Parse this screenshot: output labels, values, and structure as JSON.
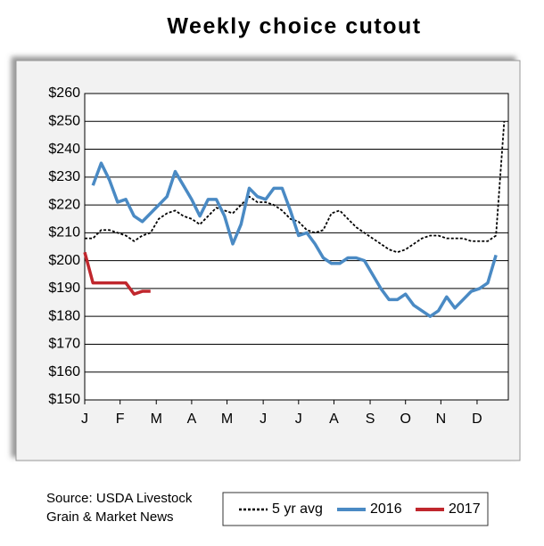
{
  "chart_data": {
    "type": "line",
    "title": "Weekly choice cutout",
    "source": [
      "Source: USDA Livestock",
      "Grain & Market News"
    ],
    "x": [
      0,
      1,
      2,
      3,
      4,
      5,
      6,
      7,
      8,
      9,
      10,
      11,
      12,
      13,
      14,
      15,
      16,
      17,
      18,
      19,
      20,
      21,
      22,
      23,
      24,
      25,
      26,
      27,
      28,
      29,
      30,
      31,
      32,
      33,
      34,
      35,
      36,
      37,
      38,
      39,
      40,
      41,
      42,
      43,
      44,
      45,
      46,
      47,
      48,
      49,
      50,
      51
    ],
    "xlim": [
      0,
      51.5
    ],
    "xticks": [
      {
        "value": 0,
        "label": "J"
      },
      {
        "value": 4.3,
        "label": "F"
      },
      {
        "value": 8.7,
        "label": "M"
      },
      {
        "value": 13,
        "label": "A"
      },
      {
        "value": 17.3,
        "label": "M"
      },
      {
        "value": 21.7,
        "label": "J"
      },
      {
        "value": 26,
        "label": "J"
      },
      {
        "value": 30.3,
        "label": "A"
      },
      {
        "value": 34.7,
        "label": "S"
      },
      {
        "value": 39,
        "label": "O"
      },
      {
        "value": 43.3,
        "label": "N"
      },
      {
        "value": 47.7,
        "label": "D"
      }
    ],
    "ylim": [
      150,
      260
    ],
    "yticks": [
      {
        "value": 150,
        "label": "$150"
      },
      {
        "value": 160,
        "label": "$160"
      },
      {
        "value": 170,
        "label": "$170"
      },
      {
        "value": 180,
        "label": "$180"
      },
      {
        "value": 190,
        "label": "$190"
      },
      {
        "value": 200,
        "label": "$200"
      },
      {
        "value": 210,
        "label": "$210"
      },
      {
        "value": 220,
        "label": "$220"
      },
      {
        "value": 230,
        "label": "$230"
      },
      {
        "value": 240,
        "label": "$240"
      },
      {
        "value": 250,
        "label": "$250"
      },
      {
        "value": 260,
        "label": "$260"
      }
    ],
    "grid": true,
    "series": [
      {
        "name": "5 yr avg",
        "color": "#000000",
        "dashed": true,
        "values": [
          208,
          208,
          211,
          211,
          210,
          209,
          207,
          209,
          210,
          215,
          217,
          218,
          216,
          215,
          213,
          216,
          219,
          218,
          217,
          220,
          223,
          221,
          221,
          220,
          218,
          215,
          214,
          211,
          210,
          211,
          217,
          218,
          215,
          212,
          210,
          208,
          206,
          204,
          203,
          204,
          206,
          208,
          209,
          209,
          208,
          208,
          208,
          207,
          207,
          207,
          209,
          250
        ]
      },
      {
        "name": "2016",
        "color": "#4a8ac4",
        "dashed": false,
        "values": [
          null,
          227,
          235,
          229,
          221,
          222,
          216,
          214,
          217,
          220,
          223,
          232,
          227,
          222,
          216,
          222,
          222,
          216,
          206,
          213,
          226,
          223,
          222,
          226,
          226,
          218,
          209,
          210,
          206,
          201,
          199,
          199,
          201,
          201,
          200,
          195,
          190,
          186,
          186,
          188,
          184,
          182,
          180,
          182,
          187,
          183,
          186,
          189,
          190,
          192,
          202,
          null
        ]
      },
      {
        "name": "2017",
        "color": "#c0272d",
        "dashed": false,
        "values": [
          203,
          192,
          192,
          192,
          192,
          192,
          188,
          189,
          189,
          null,
          null,
          null,
          null,
          null,
          null,
          null,
          null,
          null,
          null,
          null,
          null,
          null,
          null,
          null,
          null,
          null,
          null,
          null,
          null,
          null,
          null,
          null,
          null,
          null,
          null,
          null,
          null,
          null,
          null,
          null,
          null,
          null,
          null,
          null,
          null,
          null,
          null,
          null,
          null,
          null,
          null,
          null
        ]
      }
    ]
  }
}
